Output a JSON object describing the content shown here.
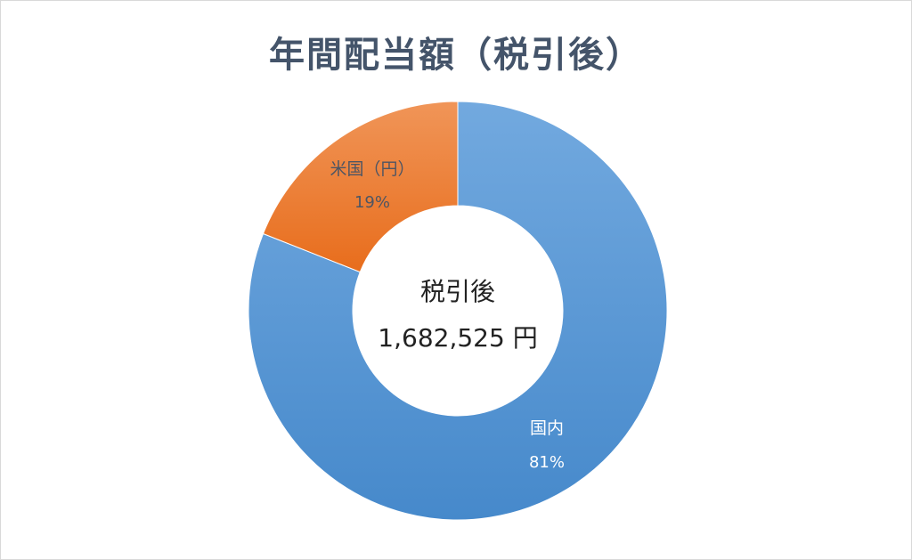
{
  "chart_data": {
    "type": "pie",
    "variant": "donut",
    "title": "年間配当額（税引後）",
    "categories": [
      "国内",
      "米国（円）"
    ],
    "values": [
      81,
      19
    ],
    "unit": "%",
    "data_labels": [
      "81%",
      "19%"
    ],
    "colors": [
      "#5b9bd5",
      "#ed7d31"
    ],
    "center_label": "税引後",
    "center_value": "1,682,525 円",
    "legend": "none"
  }
}
